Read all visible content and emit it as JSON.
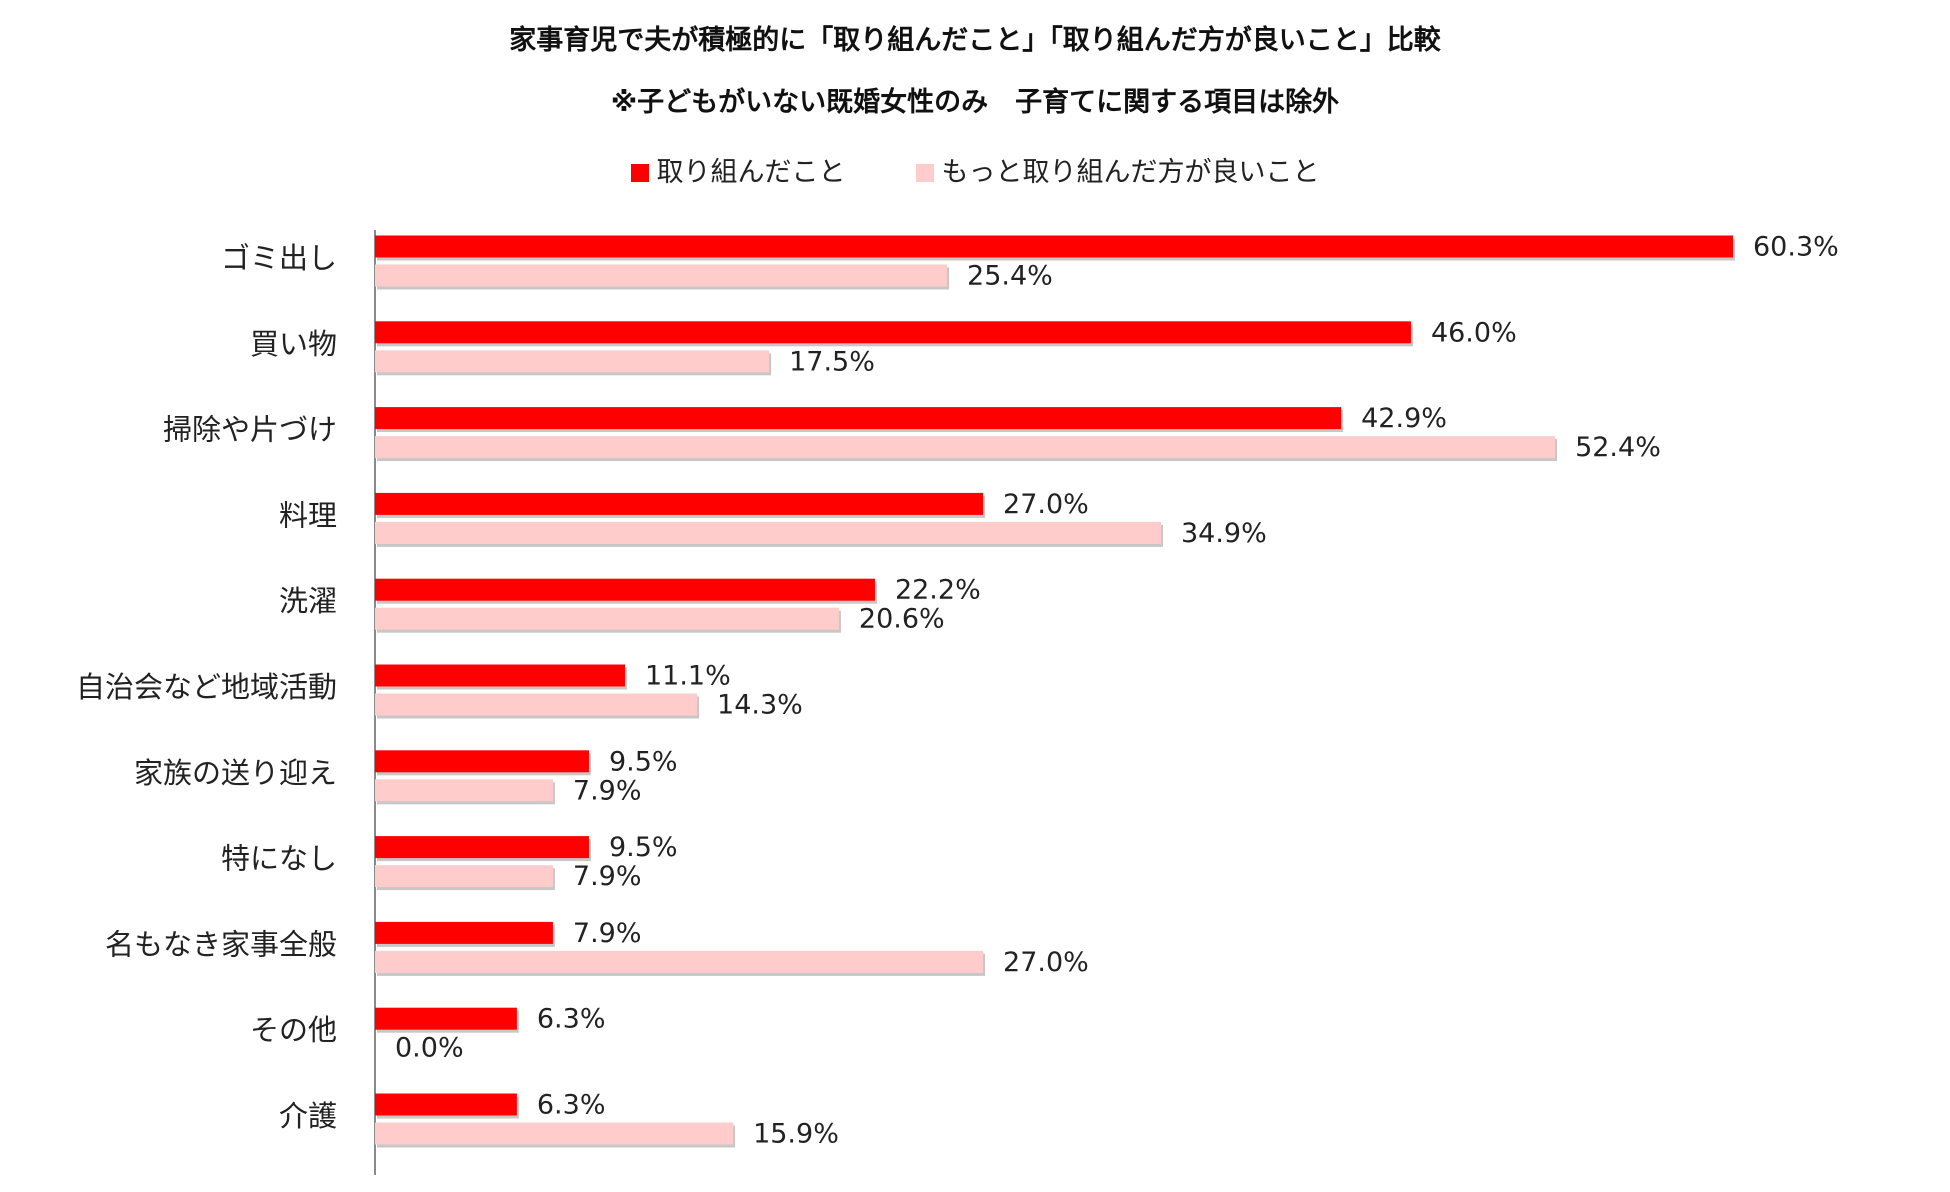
{
  "chart_data": {
    "type": "bar",
    "orientation": "horizontal",
    "title": "家事育児で夫が積極的に「取り組んだこと」「取り組んだ方が良いこと」比較",
    "subtitle": "※子どもがいない既婚女性のみ　子育てに関する項目は除外",
    "categories": [
      "ゴミ出し",
      "買い物",
      "掃除や片づけ",
      "料理",
      "洗濯",
      "自治会など地域活動",
      "家族の送り迎え",
      "特になし",
      "名もなき家事全般",
      "その他",
      "介護"
    ],
    "series": [
      {
        "name": "取り組んだこと",
        "color": "#ff0000",
        "values": [
          60.3,
          46.0,
          42.9,
          27.0,
          22.2,
          11.1,
          9.5,
          9.5,
          7.9,
          6.3,
          6.3
        ],
        "labels": [
          "60.3%",
          "46.0%",
          "42.9%",
          "27.0%",
          "22.2%",
          "11.1%",
          "9.5%",
          "9.5%",
          "7.9%",
          "6.3%",
          "6.3%"
        ]
      },
      {
        "name": "もっと取り組んだ方が良いこと",
        "color": "#ffcccc",
        "values": [
          25.4,
          17.5,
          52.4,
          34.9,
          20.6,
          14.3,
          7.9,
          7.9,
          27.0,
          0.0,
          15.9
        ],
        "labels": [
          "25.4%",
          "17.5%",
          "52.4%",
          "34.9%",
          "20.6%",
          "14.3%",
          "7.9%",
          "7.9%",
          "27.0%",
          "0.0%",
          "15.9%"
        ]
      }
    ],
    "xlim": [
      0,
      60.3
    ],
    "legend_position": "top",
    "grid": false
  }
}
